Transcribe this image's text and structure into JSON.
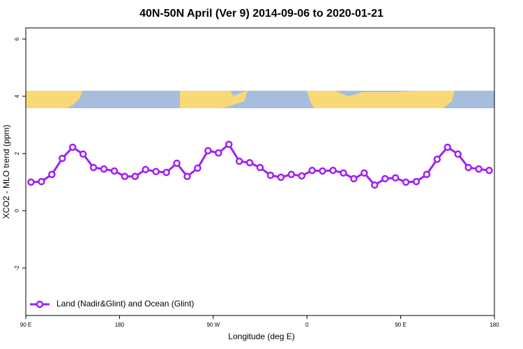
{
  "chart_data": {
    "type": "line",
    "title": "40N-50N April (Ver 9)   2014-09-06 to 2020-01-21",
    "xlabel": "Longitude (deg E)",
    "ylabel": "XCO2 - MLO trend (ppm)",
    "x": [
      95,
      105,
      115,
      125,
      135,
      145,
      155,
      165,
      175,
      185,
      195,
      205,
      215,
      225,
      235,
      245,
      255,
      265,
      275,
      285,
      295,
      305,
      315,
      325,
      335,
      345,
      355,
      365,
      375,
      385,
      395,
      405,
      415,
      425,
      435,
      445,
      455,
      465,
      475,
      485,
      495,
      505,
      515,
      525,
      535
    ],
    "series": [
      {
        "name": "Land (Nadir&Glint) and Ocean (Glint)",
        "color": "#a020f0",
        "values": [
          1.0,
          1.02,
          1.27,
          1.83,
          2.22,
          1.98,
          1.51,
          1.46,
          1.39,
          1.2,
          1.2,
          1.44,
          1.37,
          1.34,
          1.66,
          1.2,
          1.49,
          2.1,
          2.02,
          2.32,
          1.73,
          1.68,
          1.51,
          1.24,
          1.17,
          1.27,
          1.22,
          1.41,
          1.39,
          1.41,
          1.32,
          1.12,
          1.32,
          0.9,
          1.12,
          1.15,
          1.0,
          1.02,
          1.27,
          1.8,
          2.22,
          1.98,
          1.51,
          1.46,
          1.41
        ]
      }
    ],
    "xlim": [
      90,
      540
    ],
    "xticks": [
      {
        "value": 90,
        "label": "90 E"
      },
      {
        "value": 180,
        "label": "180"
      },
      {
        "value": 270,
        "label": "90 W"
      },
      {
        "value": 360,
        "label": "0"
      },
      {
        "value": 450,
        "label": "90 E"
      },
      {
        "value": 540,
        "label": "180"
      }
    ],
    "ylim": [
      -3.66,
      6.39
    ],
    "yticks": [
      -2,
      0,
      2,
      4,
      6
    ],
    "legend": "bottomleft"
  }
}
